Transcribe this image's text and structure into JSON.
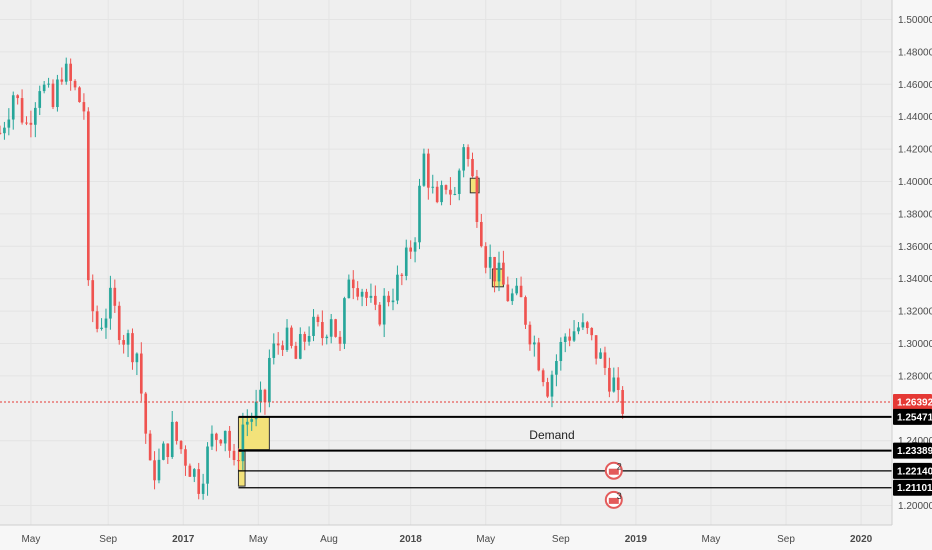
{
  "chart_data": {
    "type": "candlestick",
    "colors": {
      "up": "#26a69a",
      "down": "#ef5350",
      "level": "#000000",
      "highlight": "#f3e27a",
      "current_price_line": "#e53935",
      "event_flag": "#e35b5b"
    },
    "y_axis": {
      "ylim": [
        1.188,
        1.512
      ],
      "ticks": [
        "1.50000",
        "1.48000",
        "1.46000",
        "1.44000",
        "1.42000",
        "1.40000",
        "1.38000",
        "1.36000",
        "1.34000",
        "1.32000",
        "1.30000",
        "1.28000",
        "1.24000",
        "1.20000"
      ],
      "position": "right"
    },
    "x_axis": {
      "ticks": [
        {
          "label": "May",
          "t": 7
        },
        {
          "label": "Sep",
          "t": 24.5
        },
        {
          "label": "2017",
          "t": 41.5
        },
        {
          "label": "May",
          "t": 58.5
        },
        {
          "label": "Aug",
          "t": 74.5
        },
        {
          "label": "2018",
          "t": 93
        },
        {
          "label": "May",
          "t": 110
        },
        {
          "label": "Sep",
          "t": 127
        },
        {
          "label": "2019",
          "t": 144
        },
        {
          "label": "May",
          "t": 161
        },
        {
          "label": "Sep",
          "t": 178
        },
        {
          "label": "2020",
          "t": 195
        }
      ],
      "tmax": 202
    },
    "current_price": {
      "value": 1.26392,
      "label": "1.26392"
    },
    "levels": [
      {
        "value": 1.25471,
        "label": "1.25471",
        "t_start": 54
      },
      {
        "value": 1.23389,
        "label": "1.23389",
        "t_start": 54
      },
      {
        "value": 1.2214,
        "label": "1.22140",
        "t_start": 54
      },
      {
        "value": 1.21101,
        "label": "1.21101",
        "t_start": 54
      }
    ],
    "zone_label": {
      "text": "Demand",
      "t": 125,
      "value": 1.2435
    },
    "highlights": [
      {
        "t1": 54,
        "t2": 61,
        "y1": 1.2345,
        "y2": 1.2545
      },
      {
        "t1": 54,
        "t2": 55.5,
        "y1": 1.212,
        "y2": 1.2335
      },
      {
        "t1": 106.5,
        "t2": 108.5,
        "y1": 1.393,
        "y2": 1.402
      },
      {
        "t1": 111.5,
        "t2": 114,
        "y1": 1.335,
        "y2": 1.346
      }
    ],
    "events": [
      {
        "label": "2",
        "t": 139,
        "value": 1.2215
      },
      {
        "label": "3",
        "t": 139,
        "value": 1.2035
      }
    ],
    "ohlc_anchors": [
      [
        0,
        1.43
      ],
      [
        3,
        1.455
      ],
      [
        6,
        1.435
      ],
      [
        9,
        1.462
      ],
      [
        12,
        1.445
      ],
      [
        14,
        1.47
      ],
      [
        19,
        1.445
      ],
      [
        20,
        1.33
      ],
      [
        22,
        1.31
      ],
      [
        25,
        1.325
      ],
      [
        28,
        1.305
      ],
      [
        31,
        1.295
      ],
      [
        34,
        1.22
      ],
      [
        36,
        1.225
      ],
      [
        39,
        1.245
      ],
      [
        42,
        1.23
      ],
      [
        45,
        1.215
      ],
      [
        48,
        1.24
      ],
      [
        51,
        1.25
      ],
      [
        53,
        1.22
      ],
      [
        55,
        1.25
      ],
      [
        57,
        1.255
      ],
      [
        60,
        1.265
      ],
      [
        61,
        1.29
      ],
      [
        64,
        1.305
      ],
      [
        67,
        1.29
      ],
      [
        70,
        1.31
      ],
      [
        73,
        1.305
      ],
      [
        75,
        1.32
      ],
      [
        77,
        1.295
      ],
      [
        79,
        1.345
      ],
      [
        82,
        1.335
      ],
      [
        85,
        1.315
      ],
      [
        88,
        1.33
      ],
      [
        91,
        1.34
      ],
      [
        94,
        1.37
      ],
      [
        96,
        1.415
      ],
      [
        99,
        1.38
      ],
      [
        101,
        1.4
      ],
      [
        103,
        1.39
      ],
      [
        105,
        1.425
      ],
      [
        107,
        1.4
      ],
      [
        108,
        1.385
      ],
      [
        110,
        1.355
      ],
      [
        113,
        1.34
      ],
      [
        115,
        1.33
      ],
      [
        118,
        1.325
      ],
      [
        121,
        1.3
      ],
      [
        124,
        1.275
      ],
      [
        126,
        1.29
      ],
      [
        128,
        1.305
      ],
      [
        131,
        1.31
      ],
      [
        133,
        1.305
      ],
      [
        136,
        1.29
      ],
      [
        139,
        1.275
      ],
      [
        140,
        1.262
      ]
    ],
    "n_candles": 141
  }
}
